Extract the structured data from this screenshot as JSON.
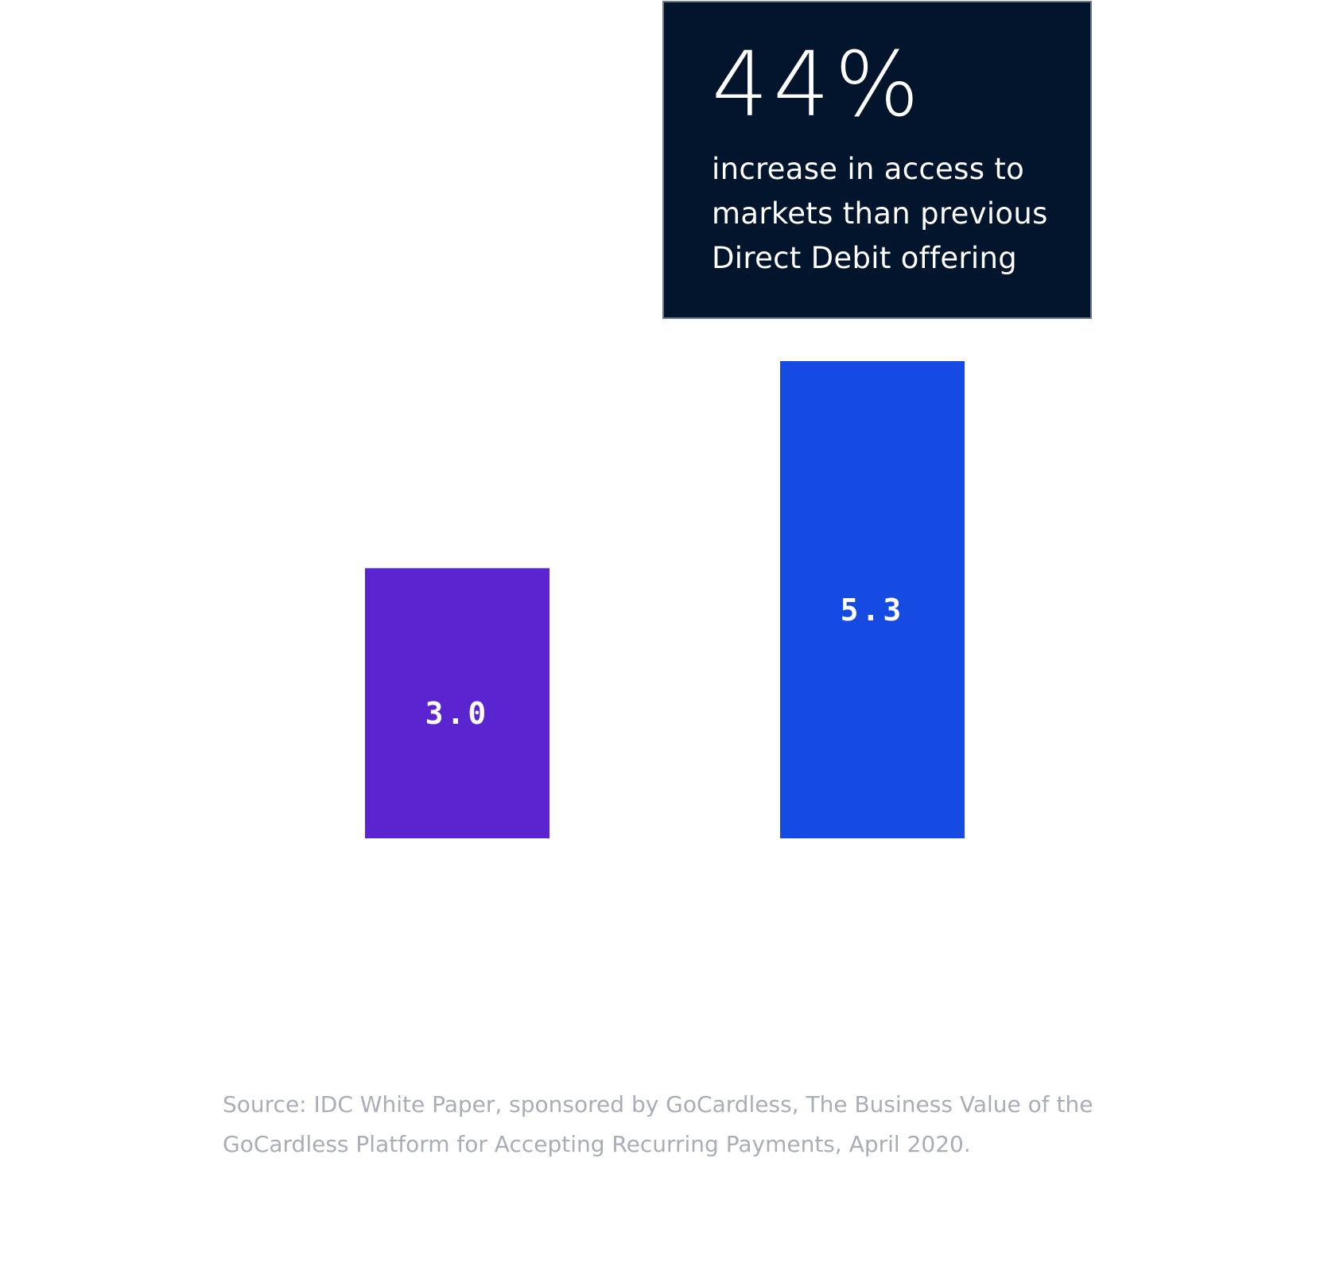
{
  "callout": {
    "figure": "44%",
    "lines": [
      "increase in access to",
      "markets than previous",
      "Direct Debit offering"
    ]
  },
  "source": {
    "lines": [
      "Source: IDC White Paper, sponsored by GoCardless, The Business Value of the",
      "GoCardless Platform for Accepting Recurring Payments, April 2020."
    ]
  },
  "chart_data": {
    "type": "bar",
    "categories": [
      "",
      ""
    ],
    "values": [
      3.0,
      5.3
    ],
    "value_labels": [
      "3.0",
      "5.3"
    ],
    "colors": [
      "#5b24d1",
      "#164be3"
    ],
    "title": "",
    "xlabel": "",
    "ylabel": "",
    "ylim": [
      0,
      5.3
    ],
    "grid": false,
    "legend": "none"
  }
}
